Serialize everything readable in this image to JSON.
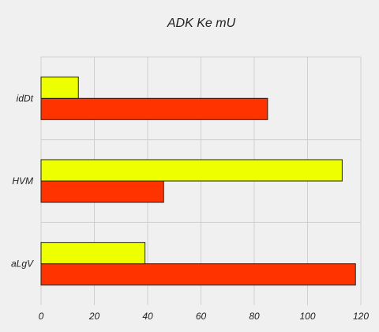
{
  "chart_data": {
    "type": "bar",
    "orientation": "horizontal",
    "title": "ADK Ke mU",
    "xlabel": "",
    "ylabel": "",
    "categories": [
      "aLgV",
      "HVM",
      "idDt"
    ],
    "series": [
      {
        "color": "#ff3300",
        "values": [
          118,
          46,
          85
        ]
      },
      {
        "color": "#eeff00",
        "values": [
          39,
          113,
          14
        ]
      }
    ],
    "xlim": [
      0,
      120
    ],
    "xticks": [
      0,
      20,
      40,
      60,
      80,
      100,
      120
    ],
    "grid": true,
    "legend": "none"
  }
}
